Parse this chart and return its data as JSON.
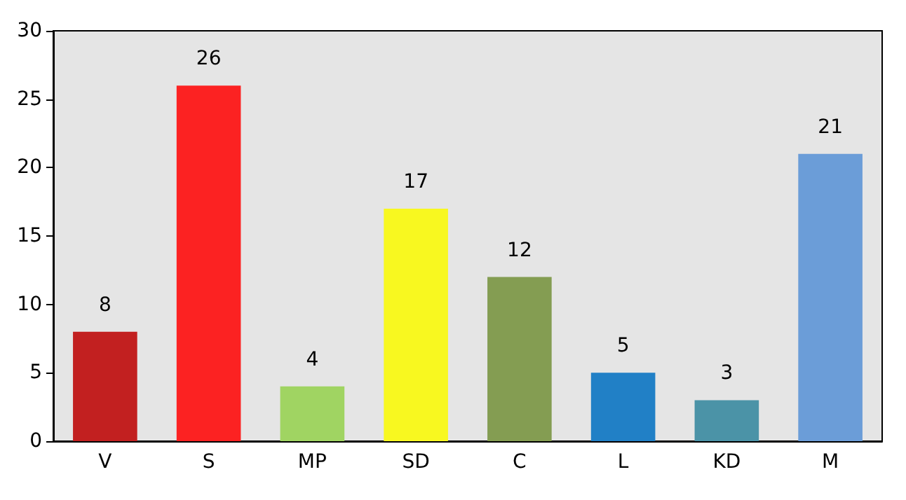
{
  "chart_data": {
    "type": "bar",
    "categories": [
      "V",
      "S",
      "MP",
      "SD",
      "C",
      "L",
      "KD",
      "M"
    ],
    "values": [
      8,
      26,
      4,
      17,
      12,
      5,
      3,
      21
    ],
    "colors": [
      "#c22020",
      "#fc2222",
      "#a0d462",
      "#f8f820",
      "#849d52",
      "#2180c6",
      "#4b93a7",
      "#6b9dd8"
    ],
    "ylim": [
      0,
      30
    ],
    "yticks": [
      0,
      5,
      10,
      15,
      20,
      25,
      30
    ],
    "grid": false,
    "data_labels": true
  }
}
